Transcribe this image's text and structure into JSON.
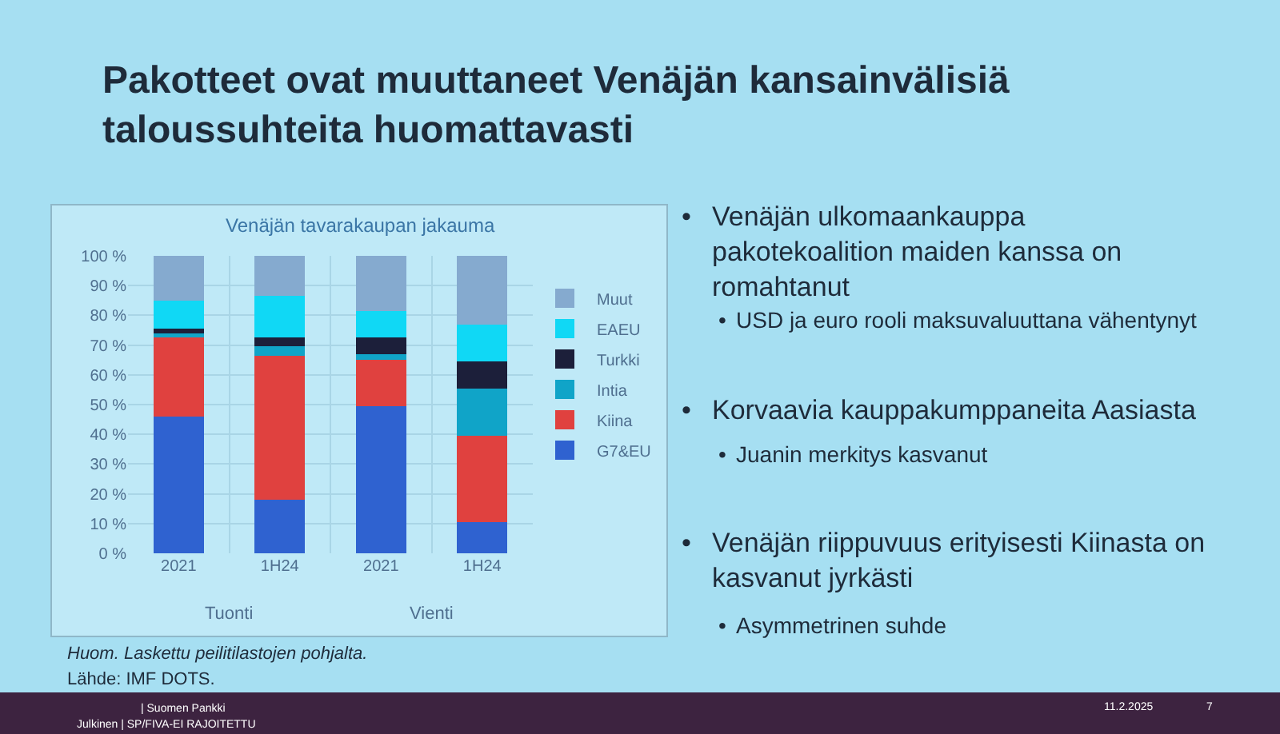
{
  "chart_data": {
    "type": "bar",
    "title": "Pakotteet ovat muuttaneet Venäjän kansainvälisiä taloussuhteita huomattavasti",
    "subtitle": "Venäjän tavarakaupan jakauma",
    "categories": [
      "2021",
      "1H24",
      "2021",
      "1H24"
    ],
    "stacked": true,
    "series": [
      {
        "name": "G7&EU",
        "color": "#2f62d0",
        "values": [
          46,
          18,
          49.5,
          10.5
        ]
      },
      {
        "name": "Kiina",
        "color": "#e0413f",
        "values": [
          26.5,
          48.5,
          15.5,
          29
        ]
      },
      {
        "name": "Intia",
        "color": "#10a4c8",
        "values": [
          1.5,
          3,
          2,
          16
        ]
      },
      {
        "name": "Turkki",
        "color": "#1c1f3a",
        "values": [
          1.5,
          3,
          5.5,
          9
        ]
      },
      {
        "name": "EAEU",
        "color": "#10d8f5",
        "values": [
          9.5,
          14,
          9,
          12.5
        ]
      },
      {
        "name": "Muut",
        "color": "#85aacf",
        "values": [
          15,
          13.5,
          18.5,
          23
        ]
      }
    ],
    "ylim": [
      0,
      100
    ],
    "yticks": [
      {
        "value": 0,
        "label": "0 %"
      },
      {
        "value": 10,
        "label": "10 %"
      },
      {
        "value": 20,
        "label": "20 %"
      },
      {
        "value": 30,
        "label": "30 %"
      },
      {
        "value": 40,
        "label": "40 %"
      },
      {
        "value": 50,
        "label": "50 %"
      },
      {
        "value": 60,
        "label": "60 %"
      },
      {
        "value": 70,
        "label": "70 %"
      },
      {
        "value": 80,
        "label": "80 %"
      },
      {
        "value": 90,
        "label": "90 %"
      },
      {
        "value": 100,
        "label": "100 %"
      }
    ],
    "grid": true,
    "legend": "right",
    "annotations": [
      "Tuonti",
      "Vienti",
      "• Venäjän ulkomaankauppa pakotekoalition maiden kanssa on romahtanut",
      "• USD ja euro rooli maksuvaluuttana vähentynyt",
      "• Korvaavia kauppakumppaneita Aasiasta",
      "• Juanin merkitys kasvanut",
      "• Venäjän riippuvuus erityisesti Kiinasta on kasvanut jyrkästi",
      "• Asymmetrinen suhde",
      "Huom. Laskettu peilitilastojen pohjalta.",
      "Lähde: IMF DOTS.",
      "| Suomen Pankki",
      "Julkinen | SP/FIVA-EI RAJOITETTU",
      "11.2.2025",
      "7"
    ]
  }
}
